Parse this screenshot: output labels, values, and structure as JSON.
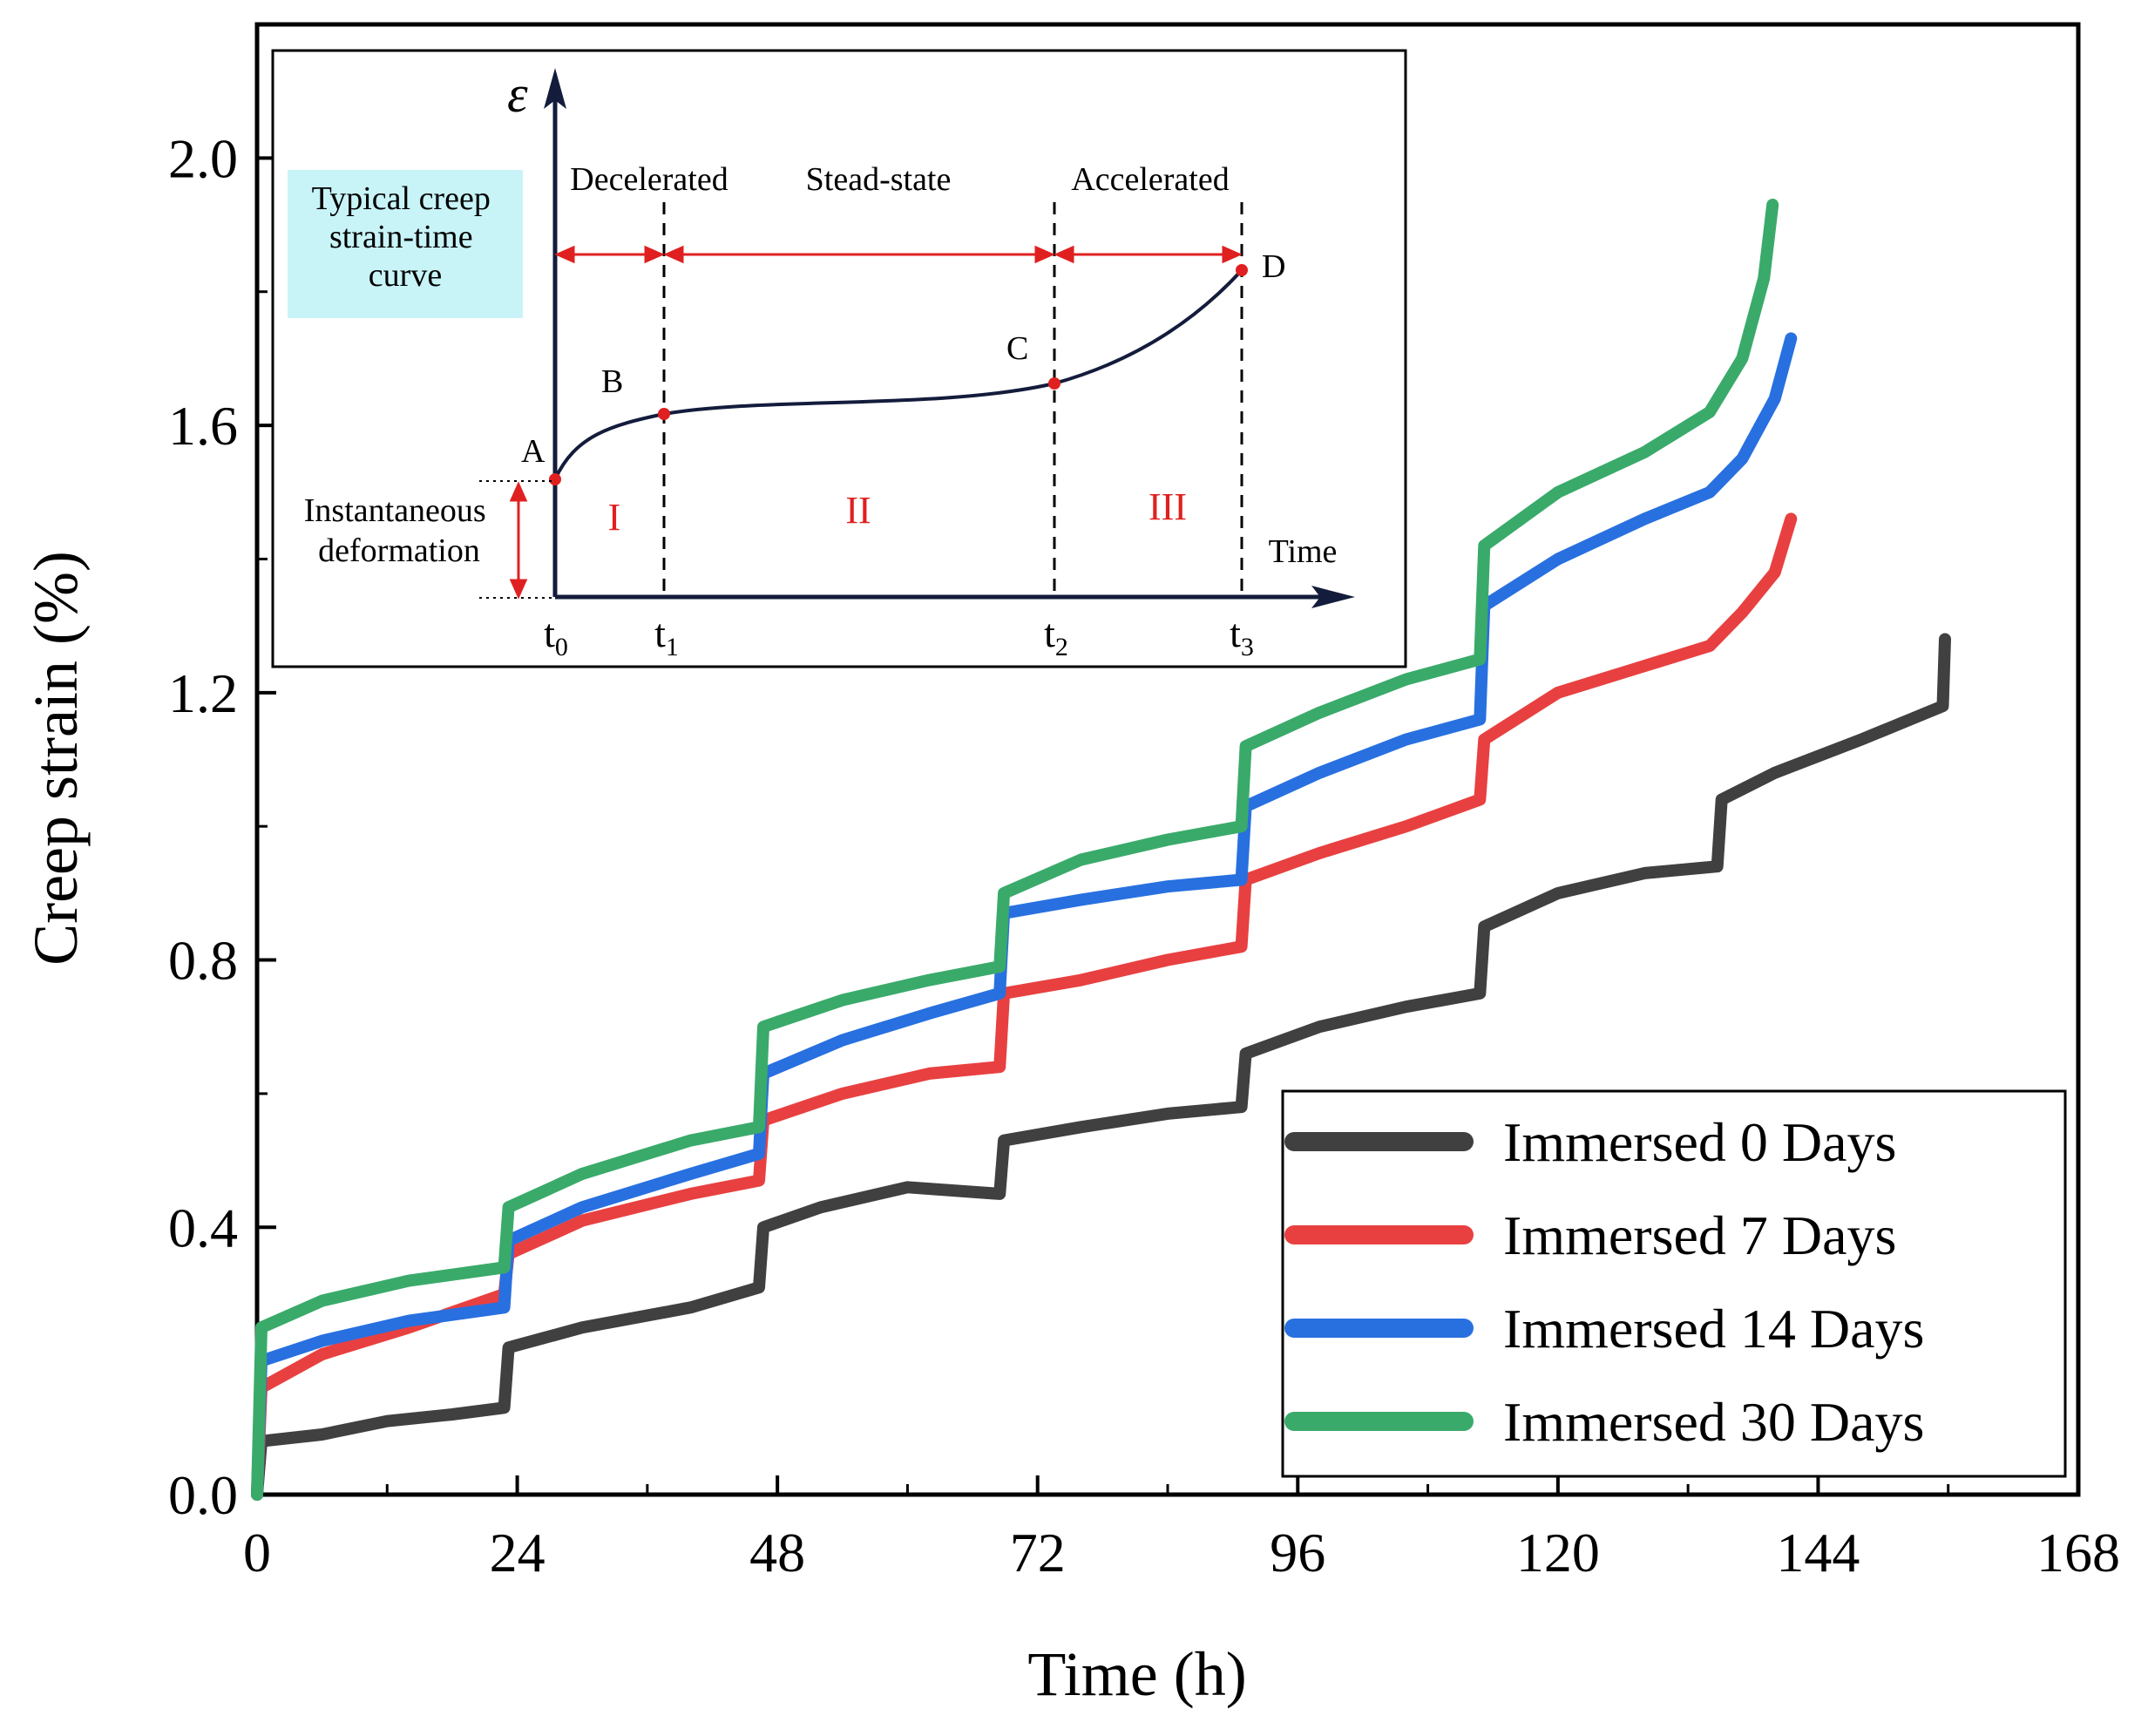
{
  "chart_data": {
    "type": "line",
    "xlabel": "Time (h)",
    "ylabel": "Creep strain (%)",
    "xlim": [
      0,
      168
    ],
    "ylim": [
      0,
      2.2
    ],
    "xticks": [
      0,
      24,
      48,
      72,
      96,
      120,
      144,
      168
    ],
    "xtick_labels": [
      "0",
      "24",
      "48",
      "72",
      "96",
      "120",
      "144",
      "168"
    ],
    "yticks": [
      0,
      0.4,
      0.8,
      1.2,
      1.6,
      2.0
    ],
    "ytick_labels": [
      "0.0",
      "0.4",
      "0.8",
      "1.2",
      "1.6",
      "2.0"
    ],
    "legend_position": "bottom-right",
    "series": [
      {
        "name": "Immersed 0 Days",
        "color": "#404040",
        "points": [
          [
            0,
            0
          ],
          [
            0.4,
            0.08
          ],
          [
            6,
            0.09
          ],
          [
            12,
            0.11
          ],
          [
            18,
            0.12
          ],
          [
            22.8,
            0.13
          ],
          [
            23.2,
            0.22
          ],
          [
            30,
            0.25
          ],
          [
            40,
            0.28
          ],
          [
            46.3,
            0.31
          ],
          [
            46.7,
            0.4
          ],
          [
            52,
            0.43
          ],
          [
            60,
            0.46
          ],
          [
            68.5,
            0.45
          ],
          [
            68.9,
            0.53
          ],
          [
            76,
            0.55
          ],
          [
            84,
            0.57
          ],
          [
            90.8,
            0.58
          ],
          [
            91.2,
            0.66
          ],
          [
            98,
            0.7
          ],
          [
            106,
            0.73
          ],
          [
            112.8,
            0.75
          ],
          [
            113.2,
            0.85
          ],
          [
            120,
            0.9
          ],
          [
            128,
            0.93
          ],
          [
            134.7,
            0.94
          ],
          [
            135.1,
            1.04
          ],
          [
            140,
            1.08
          ],
          [
            148,
            1.13
          ],
          [
            155.5,
            1.18
          ],
          [
            155.7,
            1.28
          ]
        ]
      },
      {
        "name": "Immersed 7 Days",
        "color": "#e84040",
        "points": [
          [
            0,
            0
          ],
          [
            0.4,
            0.16
          ],
          [
            6,
            0.21
          ],
          [
            14,
            0.25
          ],
          [
            22.8,
            0.3
          ],
          [
            23.2,
            0.36
          ],
          [
            30,
            0.41
          ],
          [
            40,
            0.45
          ],
          [
            46.3,
            0.47
          ],
          [
            46.7,
            0.56
          ],
          [
            54,
            0.6
          ],
          [
            62,
            0.63
          ],
          [
            68.5,
            0.64
          ],
          [
            68.9,
            0.75
          ],
          [
            76,
            0.77
          ],
          [
            84,
            0.8
          ],
          [
            90.8,
            0.82
          ],
          [
            91.2,
            0.92
          ],
          [
            98,
            0.96
          ],
          [
            106,
            1.0
          ],
          [
            112.8,
            1.04
          ],
          [
            113.2,
            1.13
          ],
          [
            120,
            1.2
          ],
          [
            128,
            1.24
          ],
          [
            134,
            1.27
          ],
          [
            137,
            1.32
          ],
          [
            140,
            1.38
          ],
          [
            141.5,
            1.46
          ]
        ]
      },
      {
        "name": "Immersed 14 Days",
        "color": "#2870e0",
        "points": [
          [
            0,
            0
          ],
          [
            0.4,
            0.2
          ],
          [
            6,
            0.23
          ],
          [
            14,
            0.26
          ],
          [
            22.8,
            0.28
          ],
          [
            23.2,
            0.38
          ],
          [
            30,
            0.43
          ],
          [
            40,
            0.48
          ],
          [
            46.3,
            0.51
          ],
          [
            46.7,
            0.63
          ],
          [
            54,
            0.68
          ],
          [
            62,
            0.72
          ],
          [
            68.5,
            0.75
          ],
          [
            68.9,
            0.87
          ],
          [
            76,
            0.89
          ],
          [
            84,
            0.91
          ],
          [
            90.8,
            0.92
          ],
          [
            91.2,
            1.03
          ],
          [
            98,
            1.08
          ],
          [
            106,
            1.13
          ],
          [
            112.8,
            1.16
          ],
          [
            113.2,
            1.33
          ],
          [
            120,
            1.4
          ],
          [
            128,
            1.46
          ],
          [
            134,
            1.5
          ],
          [
            137,
            1.55
          ],
          [
            140,
            1.64
          ],
          [
            141.5,
            1.73
          ]
        ]
      },
      {
        "name": "Immersed 30 Days",
        "color": "#3aaa6a",
        "points": [
          [
            0,
            0
          ],
          [
            0.4,
            0.25
          ],
          [
            6,
            0.29
          ],
          [
            14,
            0.32
          ],
          [
            22.8,
            0.34
          ],
          [
            23.2,
            0.43
          ],
          [
            30,
            0.48
          ],
          [
            40,
            0.53
          ],
          [
            46.3,
            0.55
          ],
          [
            46.7,
            0.7
          ],
          [
            54,
            0.74
          ],
          [
            62,
            0.77
          ],
          [
            68.5,
            0.79
          ],
          [
            68.9,
            0.9
          ],
          [
            76,
            0.95
          ],
          [
            84,
            0.98
          ],
          [
            90.8,
            1.0
          ],
          [
            91.2,
            1.12
          ],
          [
            98,
            1.17
          ],
          [
            106,
            1.22
          ],
          [
            112.8,
            1.25
          ],
          [
            113.2,
            1.42
          ],
          [
            120,
            1.5
          ],
          [
            128,
            1.56
          ],
          [
            134,
            1.62
          ],
          [
            137,
            1.7
          ],
          [
            139,
            1.82
          ],
          [
            139.8,
            1.93
          ]
        ]
      }
    ],
    "inset": {
      "title": "Typical creep strain-time curve",
      "y_axis_symbol": "ε",
      "x_axis_label": "Time",
      "stage_labels": [
        "Decelerated",
        "Stead-state",
        "Accelerated"
      ],
      "region_labels": [
        "I",
        "II",
        "III"
      ],
      "point_labels": [
        "A",
        "B",
        "C",
        "D"
      ],
      "instantaneous_label_line1": "Instantaneous",
      "instantaneous_label_line2": "deformation",
      "time_ticks": [
        "t0",
        "t1",
        "t2",
        "t3"
      ]
    }
  }
}
